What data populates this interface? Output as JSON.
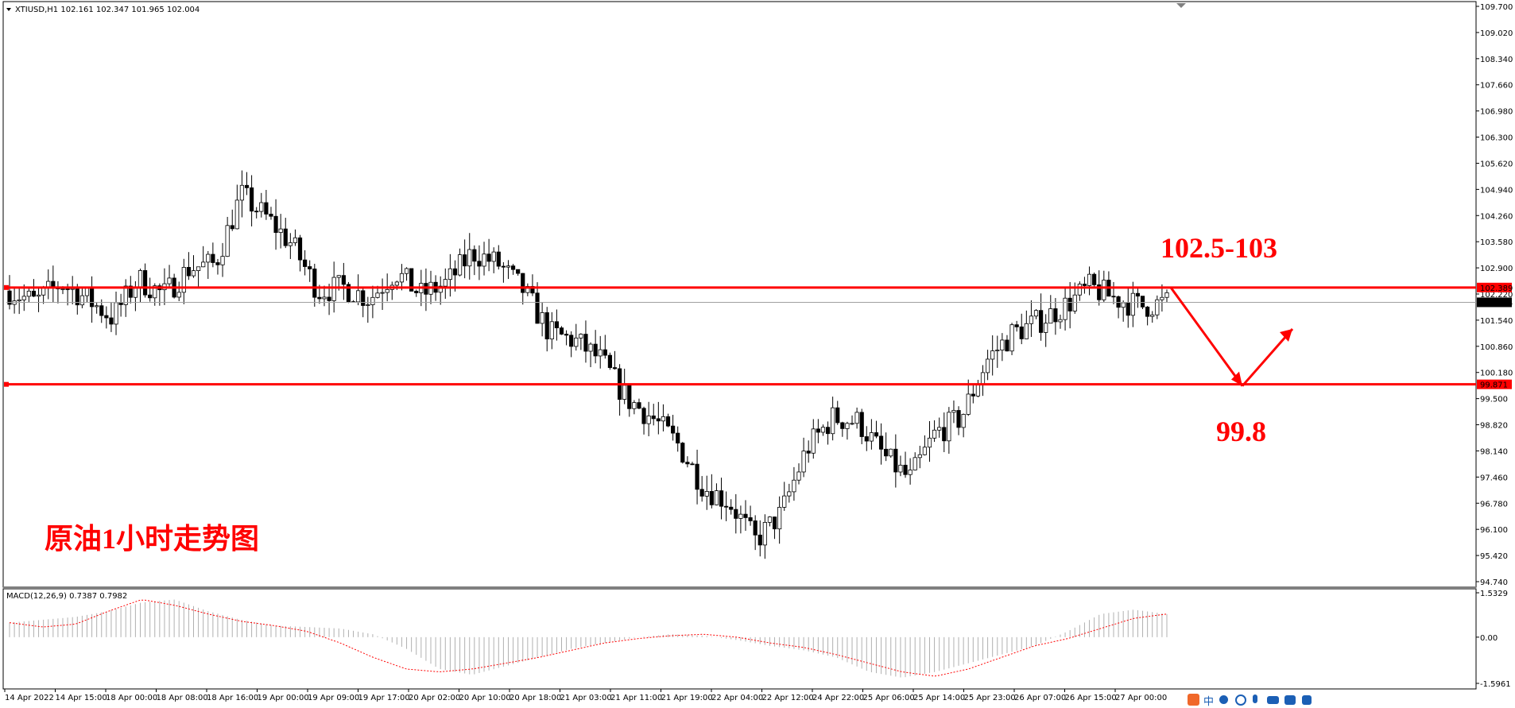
{
  "window": {
    "symbol_line": "XTIUSD,H1  102.161 102.347 101.965 102.004",
    "macd_label": "MACD(12,26,9) 0.7387 0.7982"
  },
  "annotations": {
    "upper_target": "102.5-103",
    "lower_target": "99.8",
    "chart_caption": "原油1小时走势图",
    "color": "#ff0000"
  },
  "taskbar": {
    "icons": [
      "s-logo-icon",
      "chinese-input-icon",
      "moon-icon",
      "smile-icon",
      "microphone-icon",
      "keyboard-icon",
      "shirt-icon",
      "grid-icon"
    ],
    "text": "中"
  },
  "chart_data": [
    {
      "type": "candlestick",
      "title": "",
      "symbol": "XTIUSD",
      "timeframe": "H1",
      "ohlc_header": {
        "open": 102.161,
        "high": 102.347,
        "low": 101.965,
        "close": 102.004
      },
      "y_ticks": [
        "109.700",
        "109.020",
        "108.340",
        "107.660",
        "106.980",
        "106.300",
        "105.620",
        "104.940",
        "104.260",
        "103.580",
        "102.900",
        "102.220",
        "101.540",
        "100.860",
        "100.180",
        "99.500",
        "98.820",
        "98.140",
        "97.460",
        "96.780",
        "96.100",
        "95.420",
        "94.740"
      ],
      "ylim": [
        94.74,
        109.7
      ],
      "x_ticks": [
        "14 Apr 2022",
        "14 Apr 15:00",
        "18 Apr 00:00",
        "18 Apr 08:00",
        "18 Apr 16:00",
        "19 Apr 00:00",
        "19 Apr 09:00",
        "19 Apr 17:00",
        "20 Apr 02:00",
        "20 Apr 10:00",
        "20 Apr 18:00",
        "21 Apr 03:00",
        "21 Apr 11:00",
        "21 Apr 19:00",
        "22 Apr 04:00",
        "22 Apr 12:00",
        "24 Apr 22:00",
        "25 Apr 06:00",
        "25 Apr 14:00",
        "25 Apr 23:00",
        "26 Apr 07:00",
        "26 Apr 15:00",
        "27 Apr 00:00"
      ],
      "horizontal_lines": [
        {
          "price": 102.389,
          "label": "102.389",
          "color": "#ff0000"
        },
        {
          "price": 99.871,
          "label": "99.871",
          "color": "#ff0000"
        }
      ],
      "current_price": {
        "price": 102.004,
        "label": "102.004"
      },
      "anchors": [
        102.3,
        102.0,
        102.5,
        102.1,
        101.6,
        102.6,
        102.2,
        102.9,
        103.0,
        104.8,
        104.2,
        103.5,
        102.3,
        102.4,
        102.1,
        102.8,
        102.2,
        102.5,
        103.3,
        103.0,
        102.3,
        101.2,
        101.0,
        100.5,
        99.5,
        99.0,
        98.3,
        97.2,
        96.8,
        95.8,
        96.5,
        98.2,
        99.0,
        98.9,
        98.0,
        97.4,
        98.6,
        99.0,
        100.5,
        101.2,
        101.5,
        101.9,
        102.4,
        102.1,
        101.9,
        102.0
      ],
      "bar_count": 240,
      "seed": 7
    },
    {
      "type": "bar",
      "title": "MACD(12,26,9)",
      "values_at_last": {
        "macd": 0.7387,
        "signal": 0.7982
      },
      "y_ticks": [
        "1.5329",
        "0.00",
        "-1.5961"
      ],
      "ylim": [
        -1.5961,
        1.5329
      ],
      "series": [
        {
          "name": "MACD",
          "kind": "histogram",
          "color": "#b0b0b0",
          "anchors": [
            0.5,
            0.6,
            0.7,
            0.9,
            1.2,
            1.3,
            0.9,
            0.6,
            0.4,
            0.35,
            0.3,
            0.1,
            -0.4,
            -1.1,
            -1.3,
            -1.0,
            -0.7,
            -0.4,
            -0.2,
            0.0,
            0.1,
            0.05,
            -0.1,
            -0.3,
            -0.45,
            -0.7,
            -1.2,
            -1.4,
            -1.2,
            -0.9,
            -0.6,
            -0.3,
            0.2,
            0.8,
            0.95,
            0.8
          ]
        },
        {
          "name": "Signal",
          "kind": "line",
          "color": "#ff0000",
          "anchors": [
            0.5,
            0.35,
            0.45,
            0.9,
            1.3,
            1.1,
            0.8,
            0.55,
            0.4,
            0.2,
            -0.2,
            -0.7,
            -1.1,
            -1.2,
            -1.1,
            -0.9,
            -0.7,
            -0.45,
            -0.2,
            -0.05,
            0.05,
            0.1,
            0.0,
            -0.2,
            -0.35,
            -0.6,
            -0.9,
            -1.2,
            -1.35,
            -1.1,
            -0.7,
            -0.3,
            -0.05,
            0.3,
            0.65,
            0.8
          ]
        }
      ]
    }
  ]
}
